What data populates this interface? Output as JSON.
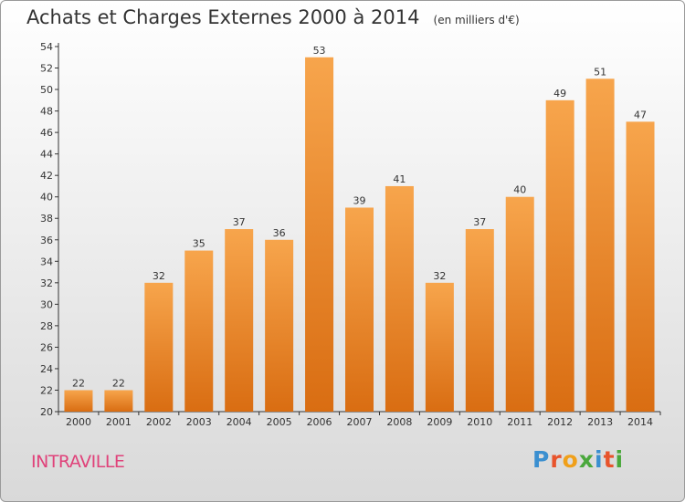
{
  "header": {
    "title": "Achats et Charges Externes 2000 à 2014",
    "subtitle": "(en milliers d'€)"
  },
  "footer": {
    "commune": "INTRAVILLE",
    "brand": "Proxiti"
  },
  "colors": {
    "bar_light": "#f7a54c",
    "bar_dark": "#d96d12",
    "commune": "#e0427a",
    "axis": "#333333"
  },
  "chart_data": {
    "type": "bar",
    "title": "Achats et Charges Externes 2000 à 2014",
    "subtitle": "(en milliers d'€)",
    "categories": [
      "2000",
      "2001",
      "2002",
      "2003",
      "2004",
      "2005",
      "2006",
      "2007",
      "2008",
      "2009",
      "2010",
      "2011",
      "2012",
      "2013",
      "2014"
    ],
    "values": [
      22,
      22,
      32,
      35,
      37,
      36,
      53,
      39,
      41,
      32,
      37,
      40,
      49,
      51,
      47
    ],
    "ylim": [
      20,
      54
    ],
    "yticks": [
      20,
      22,
      24,
      26,
      28,
      30,
      32,
      34,
      36,
      38,
      40,
      42,
      44,
      46,
      48,
      50,
      52,
      54
    ],
    "grid": false,
    "data_labels": true
  }
}
